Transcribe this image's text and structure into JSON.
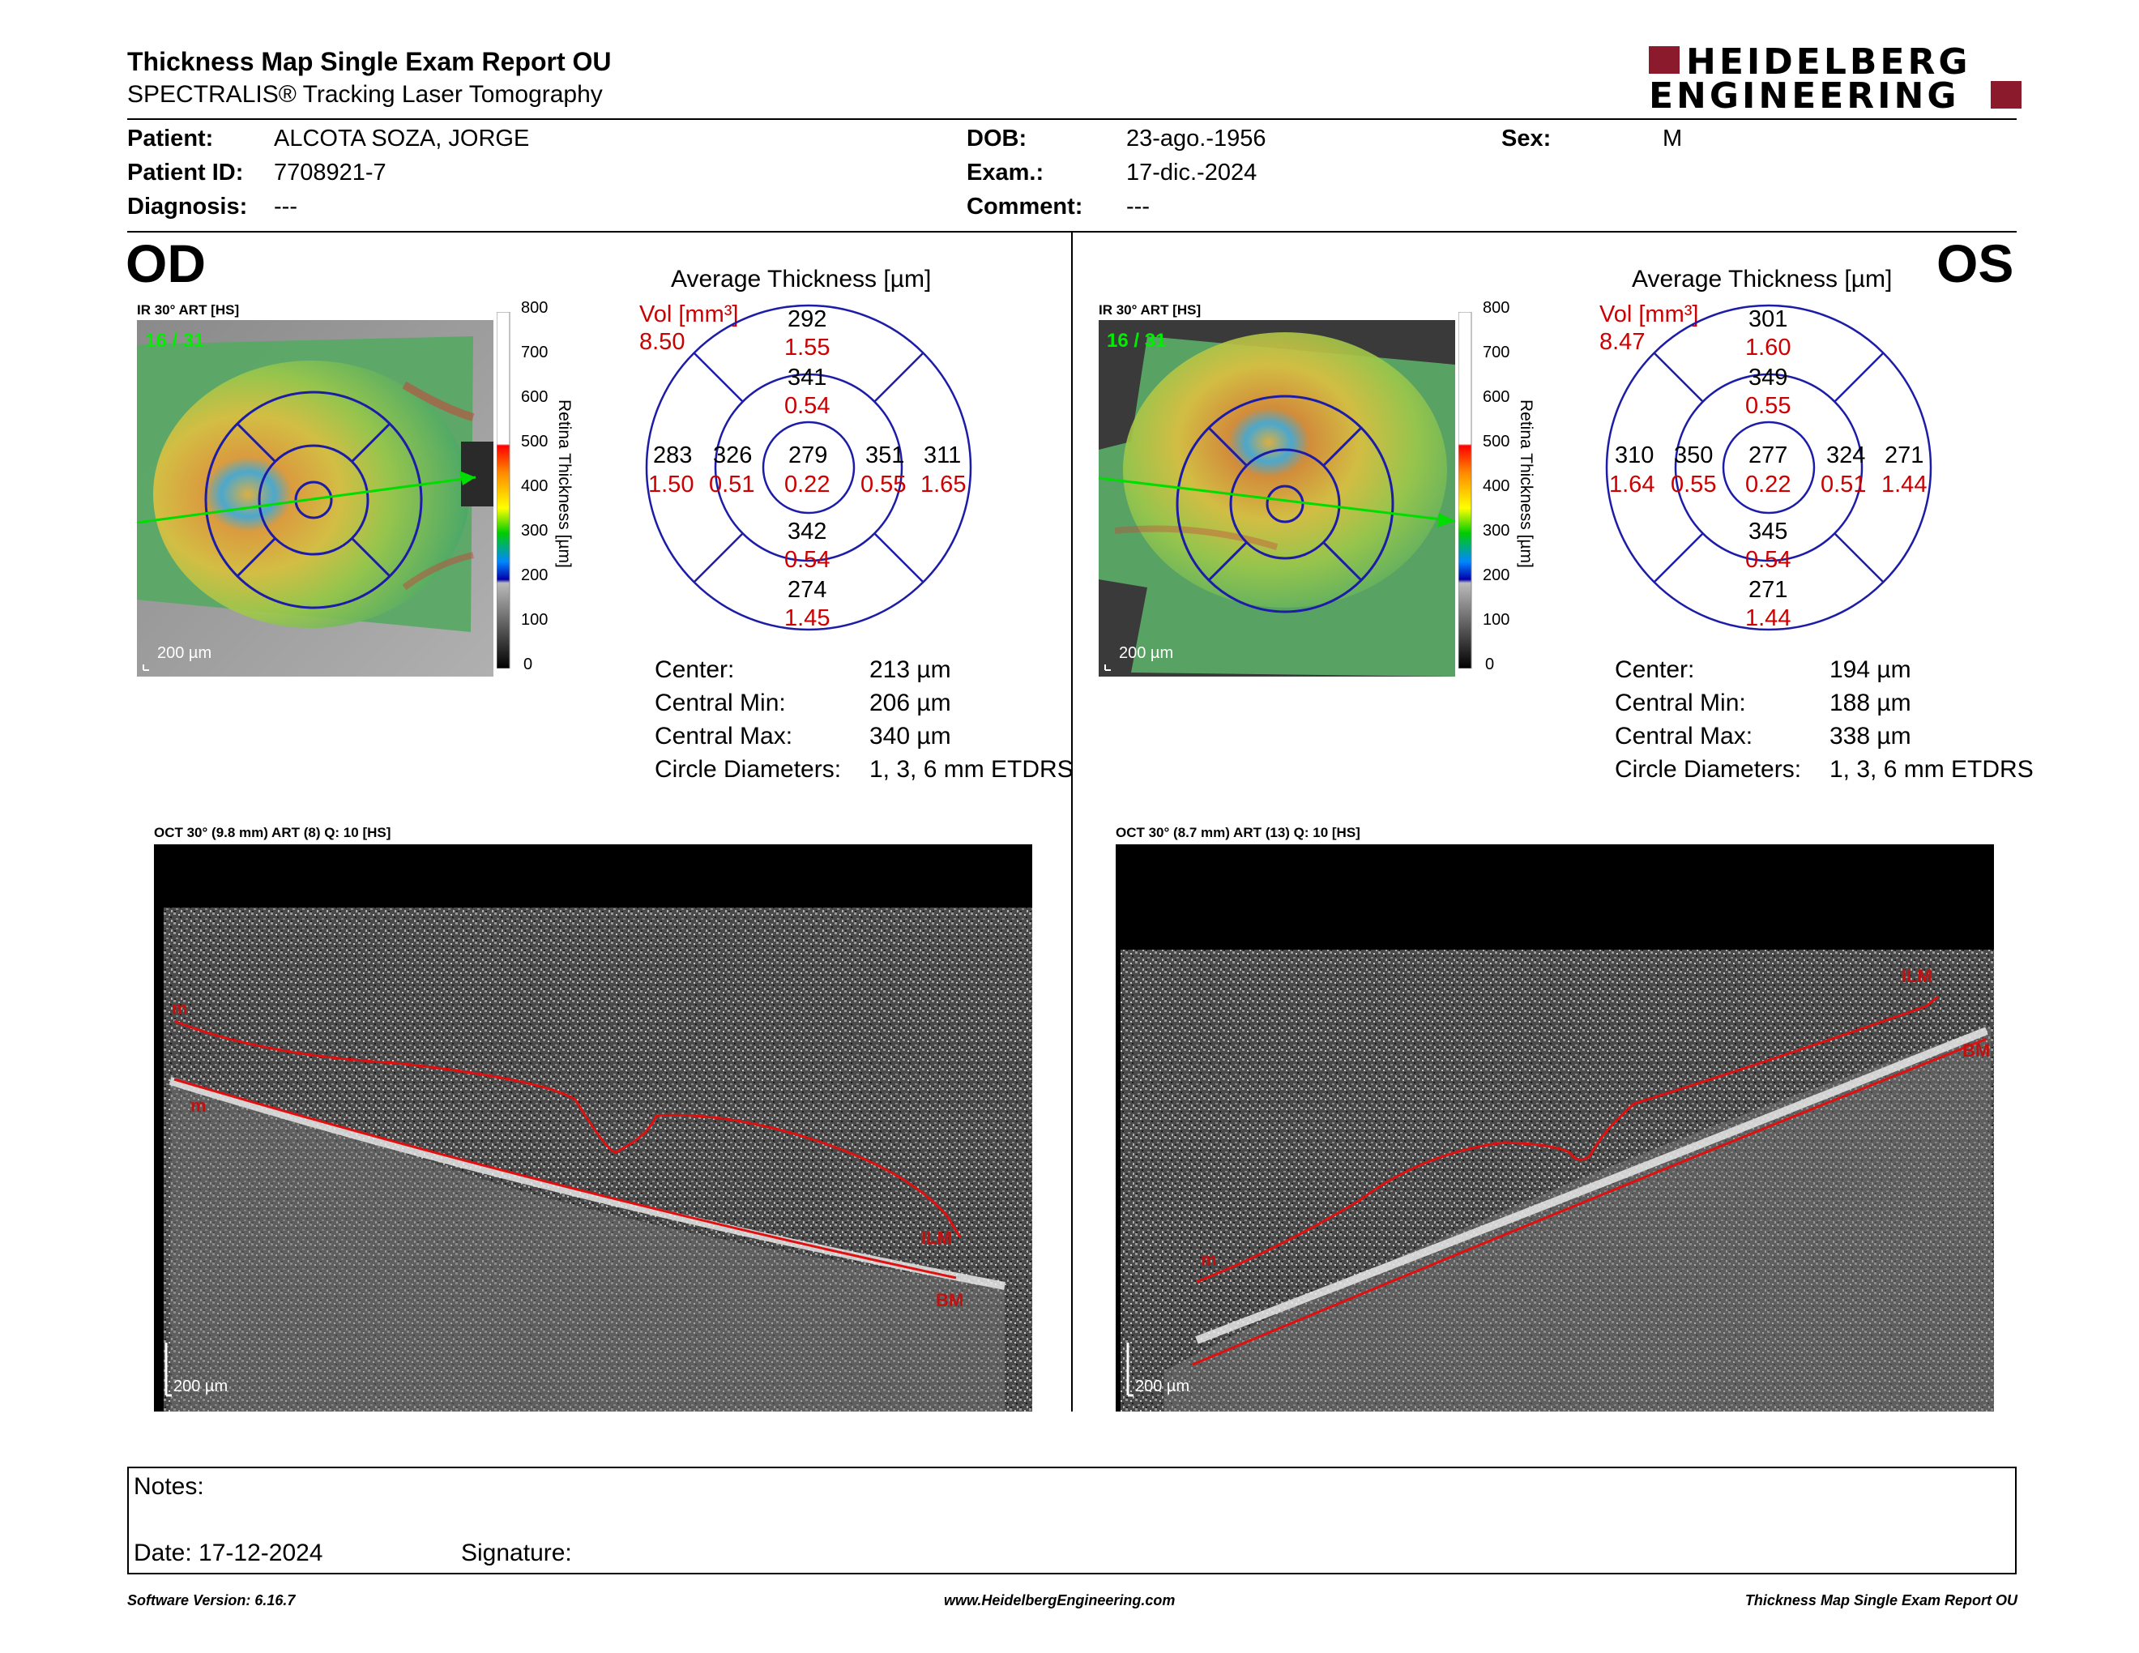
{
  "header": {
    "title": "Thickness Map Single Exam Report OU",
    "subtitle": "SPECTRALIS® Tracking Laser Tomography",
    "logo_line1": "HEIDELBERG",
    "logo_line2": "ENGINEERING",
    "logo_color": "#8b1a2c"
  },
  "patient": {
    "patient_label": "Patient:",
    "patient_value": "ALCOTA SOZA, JORGE",
    "id_label": "Patient ID:",
    "id_value": "7708921-7",
    "diag_label": "Diagnosis:",
    "diag_value": "---",
    "dob_label": "DOB:",
    "dob_value": "23-ago.-1956",
    "exam_label": "Exam.:",
    "exam_value": "17-dic.-2024",
    "comment_label": "Comment:",
    "comment_value": "---",
    "sex_label": "Sex:",
    "sex_value": "M"
  },
  "od": {
    "eye": "OD",
    "ir_title": "IR 30° ART [HS]",
    "frame": "16 / 31",
    "scale": "200 µm",
    "avg_title": "Average Thickness [µm]",
    "vol_label": "Vol [mm³]",
    "vol_value": "8.50",
    "grid": {
      "outer_sup": [
        "292",
        "1.55"
      ],
      "inner_sup": [
        "341",
        "0.54"
      ],
      "outer_temp": [
        "283",
        "1.50"
      ],
      "inner_temp": [
        "326",
        "0.51"
      ],
      "center": [
        "279",
        "0.22"
      ],
      "inner_nas": [
        "351",
        "0.55"
      ],
      "outer_nas": [
        "311",
        "1.65"
      ],
      "inner_inf": [
        "342",
        "0.54"
      ],
      "outer_inf": [
        "274",
        "1.45"
      ]
    },
    "stats": {
      "center_l": "Center:",
      "center_v": "213 µm",
      "min_l": "Central Min:",
      "min_v": "206 µm",
      "max_l": "Central Max:",
      "max_v": "340 µm",
      "diam_l": "Circle Diameters:",
      "diam_v": "1, 3, 6 mm ETDRS"
    },
    "oct_title": "OCT 30° (9.8 mm) ART (8) Q: 10 [HS]",
    "oct_scale": "200 µm",
    "ilm": "ILM",
    "bm": "BM"
  },
  "os": {
    "eye": "OS",
    "ir_title": "IR 30° ART [HS]",
    "frame": "16 / 31",
    "scale": "200 µm",
    "avg_title": "Average Thickness [µm]",
    "vol_label": "Vol [mm³]",
    "vol_value": "8.47",
    "grid": {
      "outer_sup": [
        "301",
        "1.60"
      ],
      "inner_sup": [
        "349",
        "0.55"
      ],
      "outer_temp": [
        "310",
        "1.64"
      ],
      "inner_temp": [
        "350",
        "0.55"
      ],
      "center": [
        "277",
        "0.22"
      ],
      "inner_nas": [
        "324",
        "0.51"
      ],
      "outer_nas": [
        "271",
        "1.44"
      ],
      "inner_inf": [
        "345",
        "0.54"
      ],
      "outer_inf": [
        "271",
        "1.44"
      ]
    },
    "stats": {
      "center_l": "Center:",
      "center_v": "194 µm",
      "min_l": "Central Min:",
      "min_v": "188 µm",
      "max_l": "Central Max:",
      "max_v": "338 µm",
      "diam_l": "Circle Diameters:",
      "diam_v": "1, 3, 6 mm ETDRS"
    },
    "oct_title": "OCT 30° (8.7 mm) ART (13) Q: 10 [HS]",
    "oct_scale": "200 µm",
    "ilm": "ILM",
    "bm": "BM"
  },
  "colorbar": {
    "ticks": [
      "800",
      "700",
      "600",
      "500",
      "400",
      "300",
      "200",
      "100",
      "0"
    ],
    "label": "Retina Thickness [µm]"
  },
  "notes": {
    "notes_label": "Notes:",
    "date_label": "Date: 17-12-2024",
    "signature_label": "Signature:"
  },
  "footer": {
    "left": "Software Version: 6.16.7",
    "center": "www.HeidelbergEngineering.com",
    "right": "Thickness Map Single Exam Report OU"
  }
}
